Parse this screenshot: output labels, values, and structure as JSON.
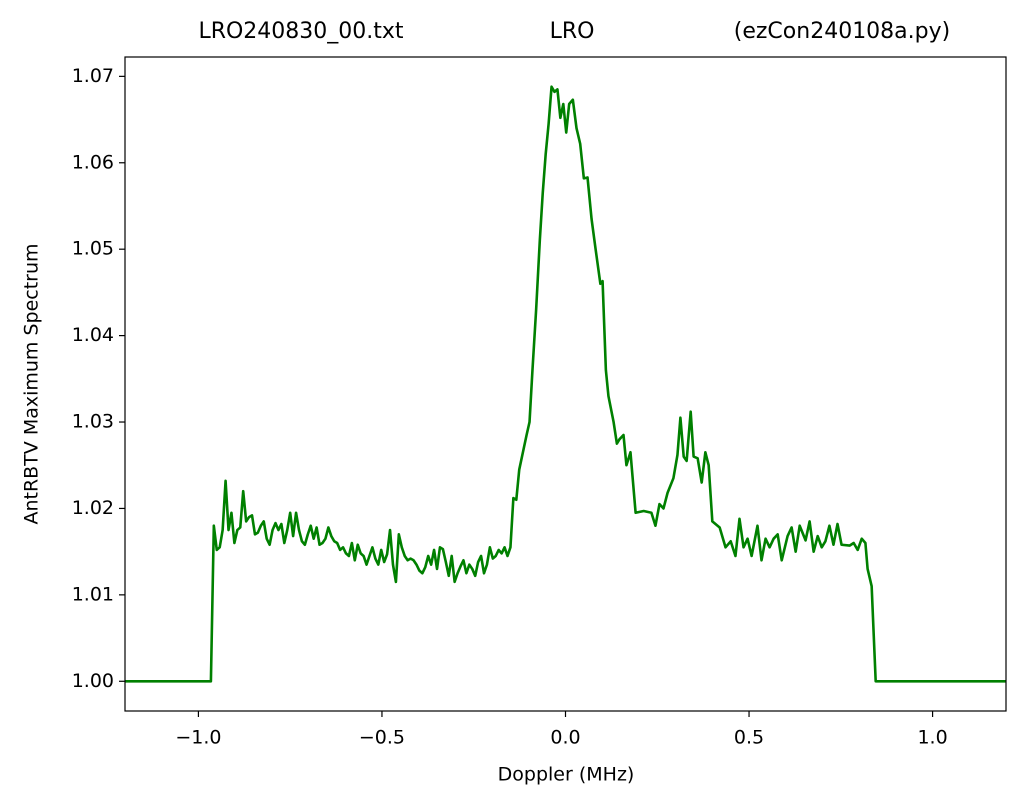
{
  "chart_data": {
    "type": "line",
    "title_parts": [
      "LRO240830_00.txt",
      "LRO",
      "(ezCon240108a.py)"
    ],
    "x_label": "Doppler (MHz)",
    "y_label": "AntRBTV Maximum Spectrum",
    "xlim": [
      -1.2,
      1.2
    ],
    "ylim": [
      0.99656,
      1.07224
    ],
    "xticks": [
      {
        "value": -1.0,
        "label": "−1.0"
      },
      {
        "value": -0.5,
        "label": "−0.5"
      },
      {
        "value": 0.0,
        "label": "0.0"
      },
      {
        "value": 0.5,
        "label": "0.5"
      },
      {
        "value": 1.0,
        "label": "1.0"
      }
    ],
    "yticks": [
      {
        "value": 1.0,
        "label": "1.00"
      },
      {
        "value": 1.01,
        "label": "1.01"
      },
      {
        "value": 1.02,
        "label": "1.02"
      },
      {
        "value": 1.03,
        "label": "1.03"
      },
      {
        "value": 1.04,
        "label": "1.04"
      },
      {
        "value": 1.05,
        "label": "1.05"
      },
      {
        "value": 1.06,
        "label": "1.06"
      },
      {
        "value": 1.07,
        "label": "1.07"
      }
    ],
    "grid": false,
    "x": [
      -1.2,
      -0.966,
      -0.958,
      -0.95,
      -0.942,
      -0.934,
      -0.926,
      -0.918,
      -0.91,
      -0.902,
      -0.894,
      -0.886,
      -0.878,
      -0.87,
      -0.862,
      -0.854,
      -0.846,
      -0.838,
      -0.83,
      -0.822,
      -0.814,
      -0.806,
      -0.798,
      -0.79,
      -0.782,
      -0.774,
      -0.766,
      -0.758,
      -0.75,
      -0.742,
      -0.734,
      -0.726,
      -0.718,
      -0.71,
      -0.702,
      -0.694,
      -0.686,
      -0.678,
      -0.67,
      -0.662,
      -0.654,
      -0.646,
      -0.638,
      -0.63,
      -0.622,
      -0.614,
      -0.606,
      -0.598,
      -0.59,
      -0.582,
      -0.574,
      -0.566,
      -0.558,
      -0.55,
      -0.542,
      -0.534,
      -0.526,
      -0.518,
      -0.51,
      -0.502,
      -0.494,
      -0.486,
      -0.478,
      -0.47,
      -0.462,
      -0.454,
      -0.446,
      -0.438,
      -0.43,
      -0.422,
      -0.414,
      -0.406,
      -0.398,
      -0.39,
      -0.382,
      -0.374,
      -0.366,
      -0.358,
      -0.35,
      -0.342,
      -0.334,
      -0.326,
      -0.318,
      -0.31,
      -0.302,
      -0.294,
      -0.286,
      -0.278,
      -0.27,
      -0.262,
      -0.254,
      -0.246,
      -0.238,
      -0.23,
      -0.222,
      -0.214,
      -0.206,
      -0.198,
      -0.19,
      -0.182,
      -0.174,
      -0.166,
      -0.158,
      -0.15,
      -0.142,
      -0.134,
      -0.126,
      -0.116,
      -0.106,
      -0.098,
      -0.09,
      -0.08,
      -0.07,
      -0.062,
      -0.054,
      -0.046,
      -0.038,
      -0.03,
      -0.022,
      -0.014,
      -0.006,
      0.002,
      0.01,
      0.02,
      0.03,
      0.04,
      0.05,
      0.06,
      0.071,
      0.082,
      0.095,
      0.101,
      0.11,
      0.117,
      0.131,
      0.14,
      0.147,
      0.158,
      0.166,
      0.177,
      0.191,
      0.213,
      0.234,
      0.245,
      0.256,
      0.267,
      0.278,
      0.294,
      0.305,
      0.313,
      0.322,
      0.33,
      0.341,
      0.349,
      0.36,
      0.371,
      0.381,
      0.39,
      0.4,
      0.42,
      0.436,
      0.45,
      0.463,
      0.474,
      0.485,
      0.496,
      0.507,
      0.523,
      0.534,
      0.545,
      0.556,
      0.567,
      0.578,
      0.589,
      0.605,
      0.616,
      0.627,
      0.638,
      0.654,
      0.665,
      0.676,
      0.687,
      0.698,
      0.708,
      0.719,
      0.73,
      0.741,
      0.752,
      0.774,
      0.785,
      0.796,
      0.807,
      0.817,
      0.823,
      0.834,
      0.845,
      1.2
    ],
    "series": [
      {
        "name": "AntRBTV Maximum Spectrum",
        "color": "#008000",
        "values": [
          1.0,
          1.0,
          1.018,
          1.0152,
          1.0155,
          1.0175,
          1.0232,
          1.0175,
          1.0195,
          1.016,
          1.0175,
          1.0178,
          1.022,
          1.0185,
          1.019,
          1.0192,
          1.017,
          1.0172,
          1.018,
          1.0185,
          1.0165,
          1.0158,
          1.0175,
          1.0183,
          1.0175,
          1.0182,
          1.016,
          1.0175,
          1.0195,
          1.0168,
          1.0195,
          1.0175,
          1.0162,
          1.0158,
          1.017,
          1.018,
          1.0165,
          1.0178,
          1.0158,
          1.016,
          1.0165,
          1.0178,
          1.0168,
          1.0162,
          1.016,
          1.0152,
          1.0155,
          1.0148,
          1.0145,
          1.016,
          1.014,
          1.0158,
          1.0148,
          1.0145,
          1.0135,
          1.0145,
          1.0155,
          1.0142,
          1.0135,
          1.0152,
          1.0138,
          1.0147,
          1.0175,
          1.0135,
          1.0115,
          1.017,
          1.0155,
          1.0145,
          1.014,
          1.0142,
          1.014,
          1.0135,
          1.0128,
          1.0125,
          1.0132,
          1.0145,
          1.0135,
          1.0152,
          1.013,
          1.0155,
          1.0153,
          1.0138,
          1.0122,
          1.0145,
          1.0115,
          1.0125,
          1.0133,
          1.014,
          1.0125,
          1.0135,
          1.013,
          1.0122,
          1.0138,
          1.0145,
          1.0125,
          1.0135,
          1.0155,
          1.0142,
          1.0145,
          1.0152,
          1.0148,
          1.0155,
          1.0145,
          1.0155,
          1.0212,
          1.021,
          1.0245,
          1.0265,
          1.0285,
          1.03,
          1.036,
          1.043,
          1.051,
          1.0565,
          1.061,
          1.0645,
          1.0688,
          1.0682,
          1.0685,
          1.0652,
          1.0668,
          1.0635,
          1.0668,
          1.0673,
          1.064,
          1.0622,
          1.0582,
          1.0583,
          1.0535,
          1.05,
          1.046,
          1.0463,
          1.036,
          1.033,
          1.03,
          1.0275,
          1.028,
          1.0285,
          1.025,
          1.0265,
          1.0195,
          1.0197,
          1.0195,
          1.018,
          1.0205,
          1.02,
          1.0218,
          1.0235,
          1.0262,
          1.0305,
          1.026,
          1.0255,
          1.0312,
          1.026,
          1.0258,
          1.023,
          1.0265,
          1.025,
          1.0185,
          1.0178,
          1.0155,
          1.0162,
          1.0145,
          1.0188,
          1.0155,
          1.0165,
          1.0145,
          1.018,
          1.014,
          1.0165,
          1.0155,
          1.0165,
          1.017,
          1.014,
          1.0168,
          1.0178,
          1.015,
          1.018,
          1.0163,
          1.0185,
          1.015,
          1.0168,
          1.0155,
          1.0162,
          1.018,
          1.0158,
          1.0182,
          1.0158,
          1.0157,
          1.016,
          1.0152,
          1.0165,
          1.016,
          1.013,
          1.011,
          1.0,
          1.0
        ]
      }
    ]
  }
}
